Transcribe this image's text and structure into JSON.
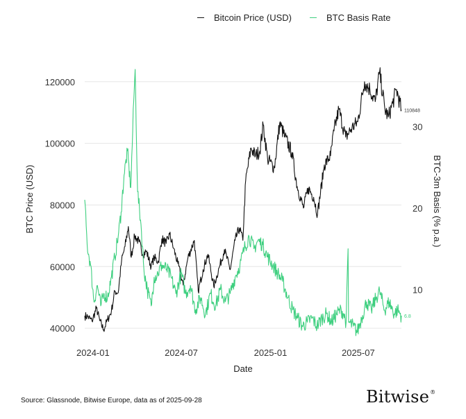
{
  "chart_data": {
    "type": "line",
    "xlabel": "Date",
    "ylabel_left": "BTC Price (USD)",
    "ylabel_right": "BTC-3m Basis (% p.a.)",
    "x_ticks": [
      "2024-01",
      "2024-07",
      "2025-01",
      "2025-07"
    ],
    "y_left_ticks": [
      40000,
      60000,
      80000,
      100000,
      120000
    ],
    "y_right_ticks": [
      10,
      20,
      30
    ],
    "y_left_lim": [
      38000,
      124000
    ],
    "y_right_lim": [
      4.5,
      37
    ],
    "x_range": [
      "2023-12-15",
      "2025-09-28"
    ],
    "series": [
      {
        "name": "Bitcoin Price (USD)",
        "axis": "left",
        "color": "#111111",
        "last_label": "110848",
        "points": [
          [
            "2023-12-15",
            44000
          ],
          [
            "2023-12-22",
            43700
          ],
          [
            "2023-12-30",
            42300
          ],
          [
            "2024-01-08",
            46500
          ],
          [
            "2024-01-15",
            42500
          ],
          [
            "2024-01-23",
            39500
          ],
          [
            "2024-01-31",
            42700
          ],
          [
            "2024-02-08",
            45500
          ],
          [
            "2024-02-15",
            52000
          ],
          [
            "2024-02-22",
            51500
          ],
          [
            "2024-02-29",
            62000
          ],
          [
            "2024-03-07",
            66500
          ],
          [
            "2024-03-14",
            73000
          ],
          [
            "2024-03-20",
            63000
          ],
          [
            "2024-03-27",
            70000
          ],
          [
            "2024-04-05",
            68000
          ],
          [
            "2024-04-13",
            64000
          ],
          [
            "2024-04-20",
            65000
          ],
          [
            "2024-04-30",
            60000
          ],
          [
            "2024-05-06",
            63000
          ],
          [
            "2024-05-15",
            61500
          ],
          [
            "2024-05-22",
            69000
          ],
          [
            "2024-05-31",
            67500
          ],
          [
            "2024-06-07",
            70500
          ],
          [
            "2024-06-15",
            66000
          ],
          [
            "2024-06-24",
            61000
          ],
          [
            "2024-07-05",
            54000
          ],
          [
            "2024-07-15",
            63000
          ],
          [
            "2024-07-28",
            68500
          ],
          [
            "2024-08-05",
            52000
          ],
          [
            "2024-08-15",
            59000
          ],
          [
            "2024-08-25",
            64000
          ],
          [
            "2024-09-06",
            53500
          ],
          [
            "2024-09-18",
            60000
          ],
          [
            "2024-09-28",
            65500
          ],
          [
            "2024-10-10",
            59000
          ],
          [
            "2024-10-20",
            68500
          ],
          [
            "2024-10-29",
            72500
          ],
          [
            "2024-11-05",
            68500
          ],
          [
            "2024-11-11",
            88000
          ],
          [
            "2024-11-22",
            98500
          ],
          [
            "2024-12-01",
            96000
          ],
          [
            "2024-12-10",
            97500
          ],
          [
            "2024-12-17",
            106000
          ],
          [
            "2024-12-26",
            95000
          ],
          [
            "2025-01-09",
            92000
          ],
          [
            "2025-01-20",
            106500
          ],
          [
            "2025-01-31",
            102000
          ],
          [
            "2025-02-14",
            97000
          ],
          [
            "2025-02-25",
            86000
          ],
          [
            "2025-03-10",
            79000
          ],
          [
            "2025-03-20",
            85500
          ],
          [
            "2025-03-31",
            82500
          ],
          [
            "2025-04-08",
            77000
          ],
          [
            "2025-04-22",
            93000
          ],
          [
            "2025-05-05",
            96000
          ],
          [
            "2025-05-12",
            104000
          ],
          [
            "2025-05-22",
            111000
          ],
          [
            "2025-06-05",
            102000
          ],
          [
            "2025-06-18",
            105000
          ],
          [
            "2025-06-30",
            107000
          ],
          [
            "2025-07-14",
            120000
          ],
          [
            "2025-07-25",
            117500
          ],
          [
            "2025-08-05",
            113500
          ],
          [
            "2025-08-14",
            123000
          ],
          [
            "2025-08-25",
            111000
          ],
          [
            "2025-09-01",
            108500
          ],
          [
            "2025-09-10",
            113000
          ],
          [
            "2025-09-18",
            117500
          ],
          [
            "2025-09-28",
            110848
          ]
        ]
      },
      {
        "name": "BTC Basis Rate",
        "axis": "right",
        "color": "#3ecf7f",
        "last_label": "6.8",
        "points": [
          [
            "2023-12-15",
            21.0
          ],
          [
            "2023-12-20",
            15.5
          ],
          [
            "2023-12-27",
            13.0
          ],
          [
            "2024-01-03",
            8.5
          ],
          [
            "2024-01-10",
            10.5
          ],
          [
            "2024-01-17",
            8.0
          ],
          [
            "2024-01-24",
            9.5
          ],
          [
            "2024-01-31",
            9.0
          ],
          [
            "2024-02-08",
            11.5
          ],
          [
            "2024-02-15",
            14.0
          ],
          [
            "2024-02-22",
            16.5
          ],
          [
            "2024-02-28",
            19.5
          ],
          [
            "2024-03-05",
            24.0
          ],
          [
            "2024-03-12",
            27.0
          ],
          [
            "2024-03-19",
            22.5
          ],
          [
            "2024-03-25",
            33.0
          ],
          [
            "2024-03-28",
            37.0
          ],
          [
            "2024-04-02",
            22.0
          ],
          [
            "2024-04-09",
            18.0
          ],
          [
            "2024-04-15",
            12.5
          ],
          [
            "2024-04-22",
            10.0
          ],
          [
            "2024-04-30",
            8.0
          ],
          [
            "2024-05-06",
            11.5
          ],
          [
            "2024-05-14",
            12.0
          ],
          [
            "2024-05-22",
            13.0
          ],
          [
            "2024-06-01",
            12.5
          ],
          [
            "2024-06-10",
            11.5
          ],
          [
            "2024-06-20",
            9.5
          ],
          [
            "2024-07-01",
            12.0
          ],
          [
            "2024-07-10",
            9.5
          ],
          [
            "2024-07-20",
            10.5
          ],
          [
            "2024-07-30",
            7.5
          ],
          [
            "2024-08-10",
            9.0
          ],
          [
            "2024-08-20",
            7.0
          ],
          [
            "2024-08-30",
            9.5
          ],
          [
            "2024-09-10",
            8.0
          ],
          [
            "2024-09-20",
            10.0
          ],
          [
            "2024-09-30",
            8.5
          ],
          [
            "2024-10-10",
            9.5
          ],
          [
            "2024-10-20",
            11.5
          ],
          [
            "2024-10-30",
            13.0
          ],
          [
            "2024-11-08",
            15.0
          ],
          [
            "2024-11-18",
            16.5
          ],
          [
            "2024-11-28",
            15.0
          ],
          [
            "2024-12-06",
            16.0
          ],
          [
            "2024-12-16",
            15.5
          ],
          [
            "2024-12-26",
            14.0
          ],
          [
            "2025-01-06",
            13.0
          ],
          [
            "2025-01-16",
            12.0
          ],
          [
            "2025-01-26",
            11.0
          ],
          [
            "2025-02-06",
            9.0
          ],
          [
            "2025-02-16",
            7.5
          ],
          [
            "2025-02-26",
            6.5
          ],
          [
            "2025-03-08",
            5.5
          ],
          [
            "2025-03-18",
            6.0
          ],
          [
            "2025-03-28",
            6.5
          ],
          [
            "2025-04-07",
            5.5
          ],
          [
            "2025-04-17",
            6.5
          ],
          [
            "2025-04-27",
            7.0
          ],
          [
            "2025-05-07",
            6.0
          ],
          [
            "2025-05-17",
            7.0
          ],
          [
            "2025-05-27",
            7.5
          ],
          [
            "2025-06-01",
            7.0
          ],
          [
            "2025-06-06",
            6.0
          ],
          [
            "2025-06-10",
            15.0
          ],
          [
            "2025-06-11",
            6.0
          ],
          [
            "2025-06-21",
            5.5
          ],
          [
            "2025-06-29",
            4.8
          ],
          [
            "2025-07-08",
            6.5
          ],
          [
            "2025-07-18",
            8.5
          ],
          [
            "2025-07-28",
            7.5
          ],
          [
            "2025-08-07",
            9.0
          ],
          [
            "2025-08-14",
            9.8
          ],
          [
            "2025-08-24",
            7.5
          ],
          [
            "2025-09-03",
            8.5
          ],
          [
            "2025-09-13",
            7.0
          ],
          [
            "2025-09-20",
            7.5
          ],
          [
            "2025-09-28",
            6.8
          ]
        ]
      }
    ]
  },
  "legend": {
    "items": [
      {
        "label": "Bitcoin Price (USD)",
        "color": "#111111"
      },
      {
        "label": "BTC Basis Rate",
        "color": "#3ecf7f"
      }
    ]
  },
  "footer": {
    "source": "Source: Glassnode, Bitwise Europe, data as of 2025-09-28",
    "brand": "Bitwise",
    "brand_mark": "®"
  }
}
